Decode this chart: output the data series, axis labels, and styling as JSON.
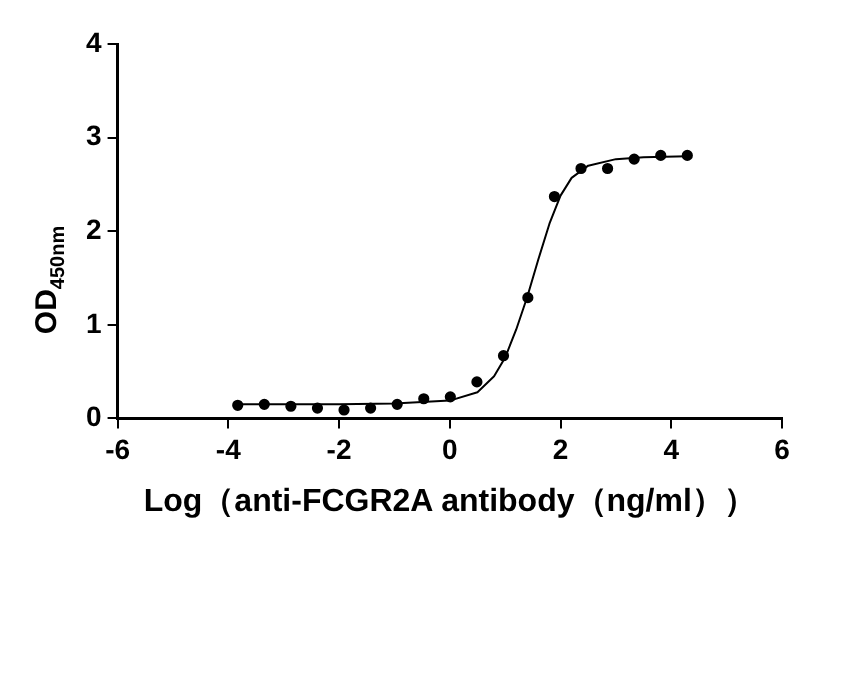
{
  "chart_data": {
    "type": "scatter",
    "xlabel": "Log（anti-FCGR2A antibody（ng/ml））",
    "ylabel": "OD$_{450nm}$",
    "xlim": [
      -6,
      6
    ],
    "xticks": [
      -6,
      -4,
      -2,
      0,
      2,
      4,
      6
    ],
    "ylim": [
      0,
      4
    ],
    "yticks": [
      0,
      1,
      2,
      3,
      4
    ],
    "grid": false,
    "legend": false,
    "series": [
      {
        "marker": "circle",
        "color": "#000000",
        "x": [
          -3.83,
          -3.35,
          -2.87,
          -2.39,
          -1.91,
          -1.43,
          -0.95,
          -0.47,
          0.01,
          0.49,
          0.97,
          1.41,
          1.89,
          2.37,
          2.85,
          3.33,
          3.81,
          4.29
        ],
        "values": [
          0.14,
          0.15,
          0.13,
          0.11,
          0.09,
          0.11,
          0.15,
          0.21,
          0.23,
          0.39,
          0.67,
          1.29,
          2.37,
          2.67,
          2.67,
          2.77,
          2.81,
          2.81
        ]
      },
      {
        "type": "line",
        "marker": "none",
        "line_style": "solid",
        "color": "#000000",
        "x": [
          -3.83,
          -2,
          -1,
          0,
          0.5,
          0.8,
          1,
          1.2,
          1.4,
          1.6,
          1.8,
          2,
          2.2,
          2.5,
          3,
          3.5,
          4.29
        ],
        "values": [
          0.15,
          0.15,
          0.16,
          0.19,
          0.28,
          0.45,
          0.65,
          0.95,
          1.3,
          1.7,
          2.08,
          2.38,
          2.57,
          2.7,
          2.77,
          2.79,
          2.8
        ]
      }
    ]
  }
}
